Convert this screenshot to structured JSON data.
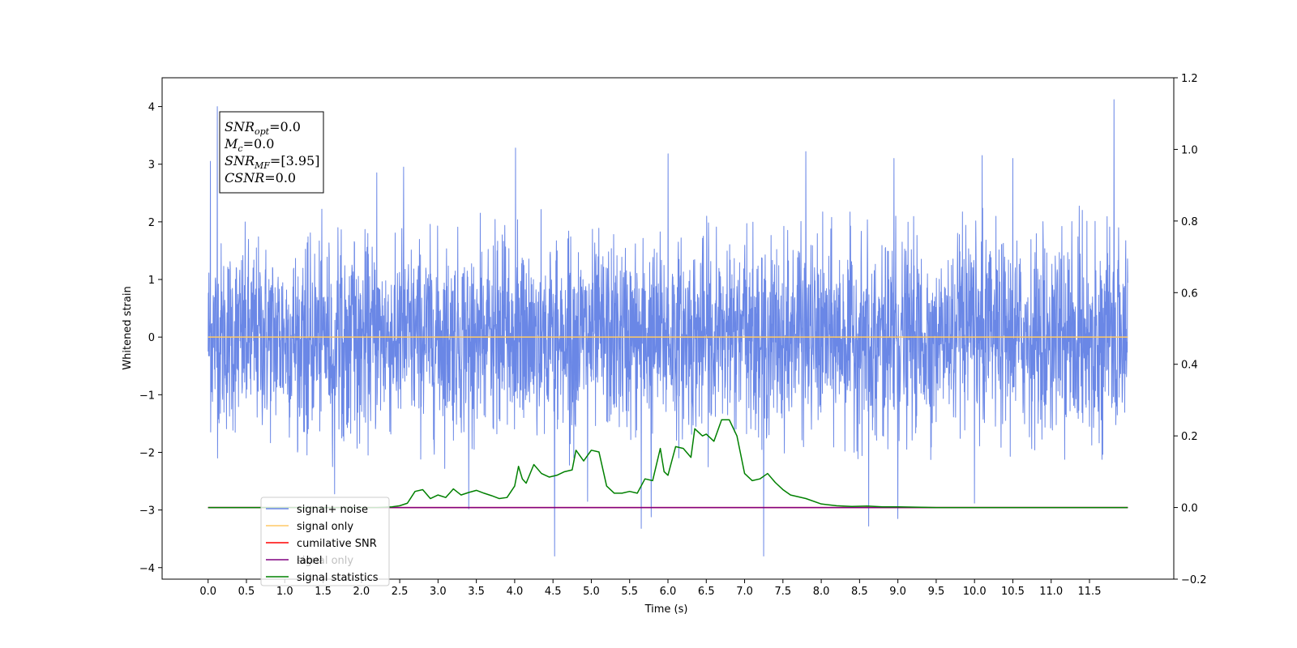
{
  "chart_data": {
    "type": "line",
    "xlabel": "Time (s)",
    "ylabel": "Whitened strain",
    "xlim": [
      -0.6,
      12.6
    ],
    "ylim_left": [
      -4.2,
      4.5
    ],
    "ylim_right": [
      -0.2,
      1.2
    ],
    "x_ticks": [
      0.0,
      0.5,
      1.0,
      1.5,
      2.0,
      2.5,
      3.0,
      3.5,
      4.0,
      4.5,
      5.0,
      5.5,
      6.0,
      6.5,
      7.0,
      7.5,
      8.0,
      8.5,
      9.0,
      9.5,
      10.0,
      10.5,
      11.0,
      11.5
    ],
    "x_tick_labels": [
      "0.0",
      "0.5",
      "1.0",
      "1.5",
      "2.0",
      "2.5",
      "3.0",
      "3.5",
      "4.0",
      "4.5",
      "5.0",
      "5.5",
      "6.0",
      "6.5",
      "7.0",
      "7.5",
      "8.0",
      "8.5",
      "9.0",
      "9.5",
      "10.0",
      "10.5",
      "11.0",
      "11.5"
    ],
    "y_ticks_left": [
      4,
      3,
      2,
      1,
      0,
      -1,
      -2,
      -3,
      -4
    ],
    "y_tick_labels_left": [
      "4",
      "3",
      "2",
      "1",
      "0",
      "−1",
      "−2",
      "−3",
      "−4"
    ],
    "y_ticks_right": [
      1.2,
      1.0,
      0.8,
      0.6,
      0.4,
      0.2,
      0.0,
      -0.2
    ],
    "y_tick_labels_right": [
      "1.2",
      "1.0",
      "0.8",
      "0.6",
      "0.4",
      "0.2",
      "0.0",
      "−0.2"
    ],
    "grid": false,
    "legend_position": "lower-left",
    "series": [
      {
        "name": "signal+ noise",
        "color": "#6a87e6",
        "axis": "left",
        "description": "noise-dominated trace, x from 0.0 to 12.0, y mostly within [-2, 2]",
        "peaks": [
          {
            "x": 0.12,
            "y": 4.0
          },
          {
            "x": 0.03,
            "y": 3.05
          },
          {
            "x": 11.82,
            "y": 4.12
          },
          {
            "x": 4.01,
            "y": 3.28
          },
          {
            "x": 6.0,
            "y": 3.18
          },
          {
            "x": 7.8,
            "y": 3.22
          },
          {
            "x": 10.1,
            "y": 3.15
          },
          {
            "x": 8.95,
            "y": 3.1
          },
          {
            "x": 10.5,
            "y": 3.1
          },
          {
            "x": 2.2,
            "y": 2.85
          },
          {
            "x": 2.55,
            "y": 2.95
          }
        ],
        "troughs": [
          {
            "x": 4.52,
            "y": -3.8
          },
          {
            "x": 7.25,
            "y": -3.8
          },
          {
            "x": 5.65,
            "y": -3.32
          },
          {
            "x": 5.78,
            "y": -3.12
          },
          {
            "x": 8.62,
            "y": -3.28
          },
          {
            "x": 9.0,
            "y": -3.15
          },
          {
            "x": 3.4,
            "y": -2.98
          },
          {
            "x": 4.95,
            "y": -2.85
          },
          {
            "x": 1.65,
            "y": -2.72
          },
          {
            "x": 10.0,
            "y": -2.88
          }
        ]
      },
      {
        "name": "signal only",
        "color": "#ffc966",
        "axis": "left",
        "x": [
          0.0,
          12.0
        ],
        "y": [
          0.0,
          0.0
        ]
      },
      {
        "name": "cumilative SNR",
        "color": "#ff0000",
        "axis": "right",
        "x": [
          0.0,
          12.0
        ],
        "y": [
          0.0,
          0.0
        ]
      },
      {
        "name": "label",
        "color": "#800080",
        "axis": "right",
        "x": [
          0.0,
          12.0
        ],
        "y": [
          0.0,
          0.0
        ]
      },
      {
        "name": "signal statistics",
        "color": "#008000",
        "axis": "right",
        "x": [
          0.0,
          2.2,
          2.4,
          2.5,
          2.6,
          2.7,
          2.8,
          2.9,
          3.0,
          3.1,
          3.2,
          3.3,
          3.4,
          3.5,
          3.6,
          3.7,
          3.8,
          3.9,
          4.0,
          4.05,
          4.1,
          4.15,
          4.25,
          4.35,
          4.45,
          4.55,
          4.65,
          4.75,
          4.8,
          4.9,
          5.0,
          5.1,
          5.2,
          5.3,
          5.4,
          5.5,
          5.6,
          5.7,
          5.8,
          5.9,
          5.95,
          6.0,
          6.1,
          6.2,
          6.3,
          6.35,
          6.45,
          6.5,
          6.6,
          6.7,
          6.8,
          6.9,
          7.0,
          7.1,
          7.2,
          7.3,
          7.4,
          7.5,
          7.6,
          7.8,
          8.0,
          8.2,
          8.4,
          8.6,
          8.8,
          9.0,
          9.5,
          12.0
        ],
        "y": [
          0.0,
          0.0,
          0.002,
          0.005,
          0.012,
          0.045,
          0.05,
          0.025,
          0.035,
          0.028,
          0.052,
          0.035,
          0.042,
          0.048,
          0.04,
          0.033,
          0.025,
          0.028,
          0.06,
          0.115,
          0.08,
          0.068,
          0.12,
          0.095,
          0.085,
          0.09,
          0.1,
          0.105,
          0.16,
          0.13,
          0.16,
          0.155,
          0.06,
          0.04,
          0.04,
          0.045,
          0.04,
          0.08,
          0.075,
          0.165,
          0.1,
          0.09,
          0.17,
          0.165,
          0.14,
          0.22,
          0.2,
          0.205,
          0.185,
          0.245,
          0.245,
          0.2,
          0.095,
          0.075,
          0.08,
          0.095,
          0.07,
          0.05,
          0.035,
          0.025,
          0.01,
          0.005,
          0.003,
          0.004,
          0.002,
          0.002,
          0.0,
          0.0
        ]
      }
    ],
    "annotation": {
      "lines": [
        {
          "sym": "SNR",
          "sub": "opt",
          "value": "=0.0"
        },
        {
          "sym": "M",
          "sub": "c",
          "value": "=0.0"
        },
        {
          "sym": "SNR",
          "sub": "MF",
          "value": "=[3.95]"
        },
        {
          "sym": "CSNR",
          "sub": "",
          "value": "=0.0"
        }
      ]
    },
    "legend_entries": [
      "signal+ noise",
      "signal only",
      "cumilative SNR",
      "label",
      "signal statistics"
    ],
    "legend_overlap_text": "signal only"
  }
}
